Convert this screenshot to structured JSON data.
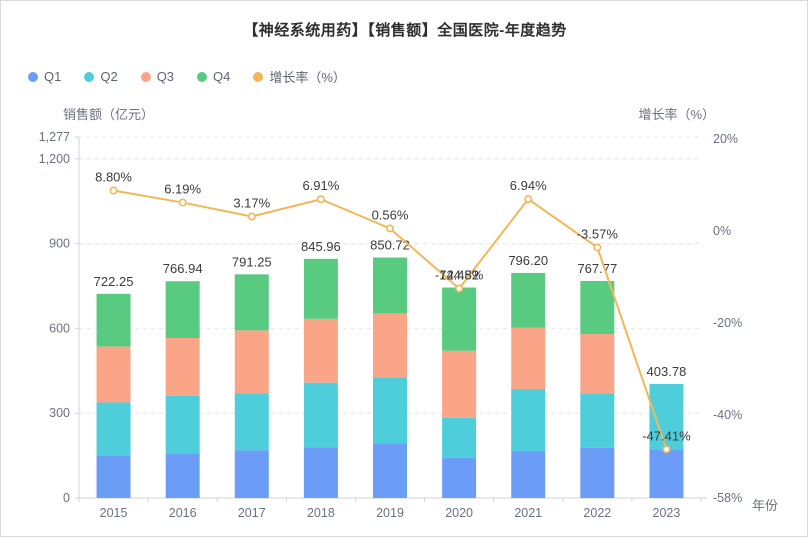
{
  "header": {
    "title": "【神经系统用药】【销售额】全国医院-年度趋势"
  },
  "legend": {
    "items": [
      {
        "label": "Q1",
        "color": "#6B9DF7"
      },
      {
        "label": "Q2",
        "color": "#4ECDDB"
      },
      {
        "label": "Q3",
        "color": "#FBA588"
      },
      {
        "label": "Q4",
        "color": "#58CB81"
      },
      {
        "label": "增长率（%）",
        "color": "#F1B758"
      }
    ]
  },
  "axes": {
    "left_title": "销售额（亿元）",
    "right_title": "增长率（%）",
    "x_title": "年份"
  },
  "chart_data": {
    "type": "stacked-bar+line",
    "categories": [
      "2015",
      "2016",
      "2017",
      "2018",
      "2019",
      "2020",
      "2021",
      "2022",
      "2023"
    ],
    "bar_series": [
      {
        "name": "Q1",
        "color": "#6B9DF7",
        "values_est": [
          151,
          158,
          169,
          179,
          194,
          142,
          166,
          178,
          172
        ]
      },
      {
        "name": "Q2",
        "color": "#4ECDDB",
        "values_est": [
          187,
          204,
          201,
          229,
          233,
          142,
          220,
          192,
          231.78
        ]
      },
      {
        "name": "Q3",
        "color": "#FBA588",
        "values_est": [
          198,
          204,
          223,
          226,
          226,
          237,
          216,
          210,
          0
        ]
      },
      {
        "name": "Q4",
        "color": "#58CB81",
        "values_est": [
          186.25,
          200.94,
          198.25,
          211.96,
          197.72,
          223.52,
          194.2,
          187.77,
          0
        ]
      }
    ],
    "bar_totals": {
      "values": [
        722.25,
        766.94,
        791.25,
        845.96,
        850.72,
        744.52,
        796.2,
        767.77,
        403.78
      ],
      "labels": [
        "722.25",
        "766.94",
        "791.25",
        "845.96",
        "850.72",
        "744.52",
        "796.20",
        "767.77",
        "403.78"
      ]
    },
    "line_series": {
      "name": "增长率（%）",
      "color": "#F1B758",
      "values": [
        8.8,
        6.19,
        3.17,
        6.91,
        0.56,
        -12.48,
        6.94,
        -3.57,
        -47.41
      ],
      "labels": [
        "8.80%",
        "6.19%",
        "3.17%",
        "6.91%",
        "0.56%",
        "-12.48%",
        "6.94%",
        "-3.57%",
        "-47.41%"
      ]
    },
    "left_axis": {
      "title": "销售额（亿元）",
      "tick_values": [
        0,
        300,
        600,
        900,
        1200,
        1277
      ],
      "tick_labels": [
        "0",
        "300",
        "600",
        "900",
        "1,200",
        "1,277"
      ],
      "max": 1277
    },
    "right_axis": {
      "title": "增长率（%）",
      "tick_values": [
        20,
        0,
        -20,
        -40,
        -58
      ],
      "tick_labels": [
        "20%",
        "0%",
        "-20%",
        "-40%",
        "-58%"
      ],
      "max": 20,
      "min": -58
    },
    "x_axis": {
      "title": "年份"
    },
    "grid": {
      "horizontal_dashed": true,
      "legend_position": "top-left"
    }
  }
}
